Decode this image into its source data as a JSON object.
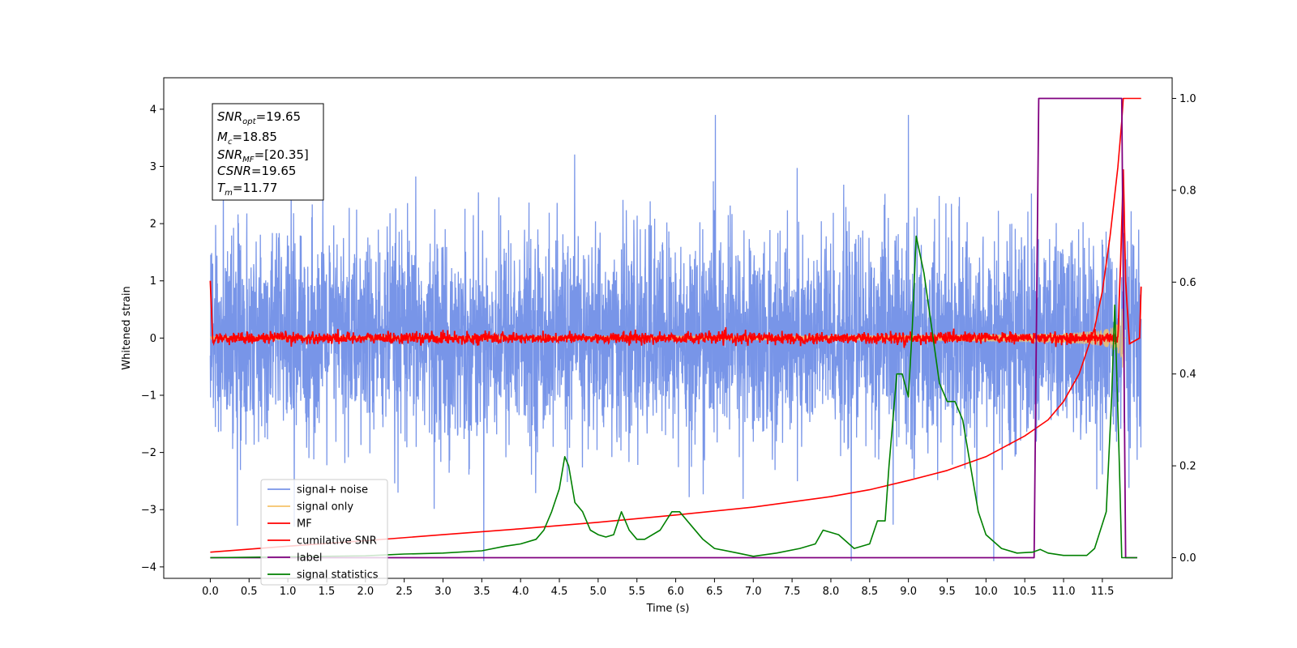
{
  "chart_data": {
    "type": "line",
    "xlabel": "Time (s)",
    "ylabel": "Whitened strain",
    "xlim": [
      -0.6,
      12.4
    ],
    "ylim": [
      -4.2,
      4.55
    ],
    "y2lim": [
      -0.045,
      1.045
    ],
    "x_ticks": [
      "0.0",
      "0.5",
      "1.0",
      "1.5",
      "2.0",
      "2.5",
      "3.0",
      "3.5",
      "4.0",
      "4.5",
      "5.0",
      "5.5",
      "6.0",
      "6.5",
      "7.0",
      "7.5",
      "8.0",
      "8.5",
      "9.0",
      "9.5",
      "10.0",
      "10.5",
      "11.0",
      "11.5"
    ],
    "y_ticks": [
      "4",
      "3",
      "2",
      "1",
      "0",
      "−1",
      "−2",
      "−3",
      "−4"
    ],
    "y2_ticks": [
      "1.0",
      "0.8",
      "0.6",
      "0.4",
      "0.2",
      "0.0"
    ],
    "grid": false,
    "legend_position": "lower-left",
    "annotation": {
      "line1": {
        "var": "SNR",
        "sub": "opt",
        "value": "=19.65"
      },
      "line2": {
        "var": "M",
        "sub": "c",
        "value": "=18.85"
      },
      "line3": {
        "var": "SNR",
        "sub": "MF",
        "value": "=[20.35]"
      },
      "line4": {
        "var": "CSNR",
        "sub": "",
        "value": "=19.65"
      },
      "line5": {
        "var": "T",
        "sub": "m",
        "value": "=11.77"
      }
    },
    "series": [
      {
        "name": "signal+ noise",
        "color": "#7895e8",
        "axis": "left",
        "kind": "noise",
        "amplitude_std": 0.9,
        "x_range": [
          0,
          12.0
        ]
      },
      {
        "name": "signal only",
        "color": "#f5c36a",
        "axis": "left",
        "kind": "chirp",
        "t_merge": 11.77,
        "x_range": [
          0,
          11.8
        ]
      },
      {
        "name": "MF",
        "color": "#ff0000",
        "axis": "left",
        "kind": "mf",
        "points": [
          [
            0.0,
            1.0
          ],
          [
            0.03,
            0.0
          ],
          [
            11.7,
            0.0
          ],
          [
            11.74,
            1.5
          ],
          [
            11.77,
            2.95
          ],
          [
            11.8,
            1.0
          ],
          [
            11.85,
            -0.1
          ],
          [
            11.98,
            0.0
          ],
          [
            12.0,
            0.9
          ]
        ]
      },
      {
        "name": "cumilative SNR",
        "color": "#ff0000",
        "axis": "right",
        "points": [
          [
            0.0,
            0.012
          ],
          [
            1.0,
            0.025
          ],
          [
            2.0,
            0.037
          ],
          [
            3.0,
            0.05
          ],
          [
            4.0,
            0.063
          ],
          [
            5.0,
            0.077
          ],
          [
            6.0,
            0.093
          ],
          [
            7.0,
            0.11
          ],
          [
            8.0,
            0.133
          ],
          [
            8.5,
            0.148
          ],
          [
            9.0,
            0.168
          ],
          [
            9.5,
            0.19
          ],
          [
            10.0,
            0.22
          ],
          [
            10.5,
            0.265
          ],
          [
            10.8,
            0.3
          ],
          [
            11.0,
            0.34
          ],
          [
            11.2,
            0.4
          ],
          [
            11.4,
            0.5
          ],
          [
            11.5,
            0.58
          ],
          [
            11.6,
            0.7
          ],
          [
            11.7,
            0.85
          ],
          [
            11.75,
            0.95
          ],
          [
            11.77,
            1.0
          ],
          [
            12.0,
            1.0
          ]
        ]
      },
      {
        "name": "label",
        "color": "#800080",
        "axis": "right",
        "points": [
          [
            0.0,
            0.0
          ],
          [
            10.62,
            0.0
          ],
          [
            10.68,
            1.0
          ],
          [
            11.75,
            1.0
          ],
          [
            11.8,
            0.0
          ],
          [
            11.95,
            0.0
          ]
        ]
      },
      {
        "name": "signal statistics",
        "color": "#008000",
        "axis": "right",
        "points": [
          [
            0.0,
            0.0
          ],
          [
            1.0,
            0.002
          ],
          [
            2.0,
            0.004
          ],
          [
            2.5,
            0.008
          ],
          [
            3.0,
            0.01
          ],
          [
            3.5,
            0.015
          ],
          [
            3.8,
            0.025
          ],
          [
            4.0,
            0.03
          ],
          [
            4.2,
            0.04
          ],
          [
            4.3,
            0.06
          ],
          [
            4.4,
            0.1
          ],
          [
            4.5,
            0.15
          ],
          [
            4.57,
            0.22
          ],
          [
            4.62,
            0.2
          ],
          [
            4.7,
            0.12
          ],
          [
            4.8,
            0.1
          ],
          [
            4.9,
            0.06
          ],
          [
            5.0,
            0.05
          ],
          [
            5.1,
            0.045
          ],
          [
            5.2,
            0.05
          ],
          [
            5.3,
            0.1
          ],
          [
            5.4,
            0.06
          ],
          [
            5.5,
            0.04
          ],
          [
            5.6,
            0.04
          ],
          [
            5.8,
            0.06
          ],
          [
            5.95,
            0.1
          ],
          [
            6.05,
            0.1
          ],
          [
            6.2,
            0.07
          ],
          [
            6.35,
            0.04
          ],
          [
            6.5,
            0.02
          ],
          [
            6.8,
            0.01
          ],
          [
            7.0,
            0.003
          ],
          [
            7.3,
            0.01
          ],
          [
            7.6,
            0.02
          ],
          [
            7.8,
            0.03
          ],
          [
            7.9,
            0.06
          ],
          [
            8.1,
            0.05
          ],
          [
            8.3,
            0.02
          ],
          [
            8.5,
            0.03
          ],
          [
            8.6,
            0.08
          ],
          [
            8.7,
            0.08
          ],
          [
            8.75,
            0.2
          ],
          [
            8.85,
            0.4
          ],
          [
            8.92,
            0.4
          ],
          [
            9.0,
            0.35
          ],
          [
            9.05,
            0.5
          ],
          [
            9.1,
            0.7
          ],
          [
            9.2,
            0.62
          ],
          [
            9.3,
            0.5
          ],
          [
            9.4,
            0.38
          ],
          [
            9.5,
            0.34
          ],
          [
            9.6,
            0.34
          ],
          [
            9.7,
            0.3
          ],
          [
            9.8,
            0.2
          ],
          [
            9.9,
            0.1
          ],
          [
            10.0,
            0.05
          ],
          [
            10.2,
            0.02
          ],
          [
            10.4,
            0.01
          ],
          [
            10.6,
            0.012
          ],
          [
            10.7,
            0.018
          ],
          [
            10.8,
            0.01
          ],
          [
            11.0,
            0.005
          ],
          [
            11.3,
            0.005
          ],
          [
            11.4,
            0.02
          ],
          [
            11.55,
            0.1
          ],
          [
            11.62,
            0.35
          ],
          [
            11.66,
            0.55
          ],
          [
            11.72,
            0.2
          ],
          [
            11.75,
            0.0
          ],
          [
            11.95,
            0.0
          ]
        ]
      }
    ]
  }
}
